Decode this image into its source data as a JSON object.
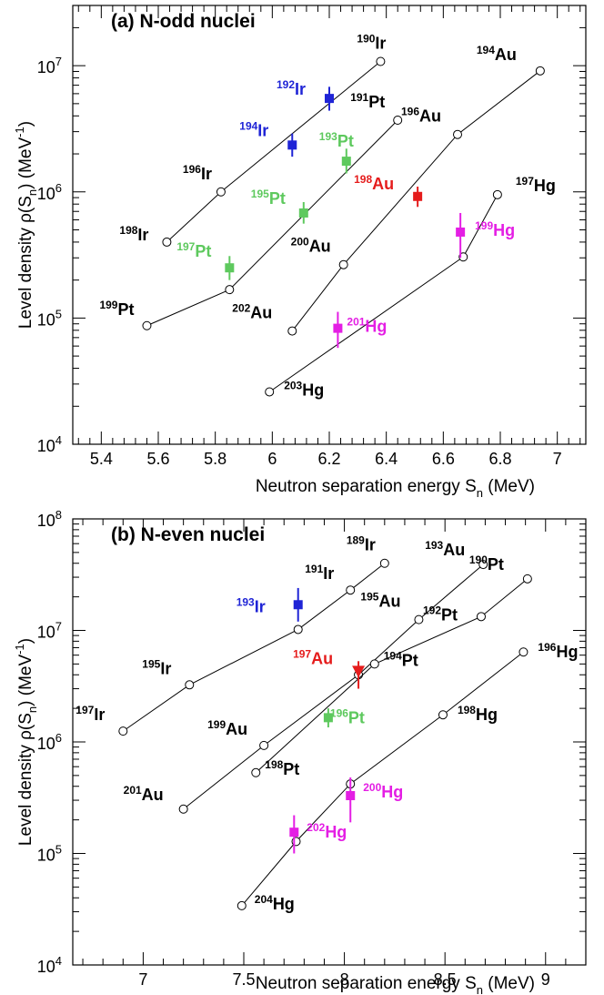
{
  "colors": {
    "Ir": "#1f24d6",
    "Pt": "#5ec95e",
    "Au": "#e51c1c",
    "Hg": "#e41ee4",
    "calc": "#000000"
  },
  "chart_data": [
    {
      "type": "scatter",
      "title": "(a)   N-odd nuclei",
      "xlabel": "Neutron separation energy S",
      "xlabel_sub": "n",
      "xlabel_unit": " (MeV)",
      "ylabel": "Level density ρ(S",
      "ylabel_sub": "n",
      "ylabel_unit": ") (MeV",
      "ylabel_sup": "-1",
      "ylabel_close": ")",
      "xlim": [
        5.3,
        7.1
      ],
      "ylim": [
        10000,
        30000000
      ],
      "yscale": "log",
      "xticks": [
        5.4,
        5.6,
        5.8,
        6.0,
        6.2,
        6.4,
        6.6,
        6.8,
        7.0
      ],
      "xtick_labels": [
        "5.4",
        "5.6",
        "5.8",
        "6",
        "6.2",
        "6.4",
        "6.6",
        "6.8",
        "7"
      ],
      "yticks": [
        10000,
        100000,
        1000000,
        10000000
      ],
      "ytick_labels": [
        {
          "base": "10",
          "exp": "4"
        },
        {
          "base": "10",
          "exp": "5"
        },
        {
          "base": "10",
          "exp": "6"
        },
        {
          "base": "10",
          "exp": "7"
        }
      ],
      "series": [
        {
          "element": "Ir",
          "points": [
            {
              "x": 5.63,
              "y": 400000,
              "label": {
                "mass": "198",
                "el": "Ir"
              }
            },
            {
              "x": 5.82,
              "y": 1000000,
              "label": {
                "mass": "196",
                "el": "Ir"
              }
            },
            {
              "x": 6.38,
              "y": 10800000,
              "label": {
                "mass": "190",
                "el": "Ir"
              }
            }
          ]
        },
        {
          "element": "Pt",
          "points": [
            {
              "x": 5.56,
              "y": 87000,
              "label": {
                "mass": "199",
                "el": "Pt"
              }
            },
            {
              "x": 5.85,
              "y": 168000,
              "label": null
            },
            {
              "x": 6.44,
              "y": 3700000,
              "label": {
                "mass": "191",
                "el": "Pt"
              }
            }
          ]
        },
        {
          "element": "Au",
          "points": [
            {
              "x": 6.07,
              "y": 79000,
              "label": {
                "mass": "202",
                "el": "Au"
              }
            },
            {
              "x": 6.25,
              "y": 265000,
              "label": {
                "mass": "200",
                "el": "Au"
              }
            },
            {
              "x": 6.65,
              "y": 2850000,
              "label": {
                "mass": "196",
                "el": "Au"
              }
            },
            {
              "x": 6.94,
              "y": 9100000,
              "label": {
                "mass": "194",
                "el": "Au"
              }
            }
          ]
        },
        {
          "element": "Hg",
          "points": [
            {
              "x": 5.99,
              "y": 26000,
              "label": {
                "mass": "203",
                "el": "Hg"
              }
            },
            {
              "x": 6.67,
              "y": 305000,
              "label": null
            },
            {
              "x": 6.79,
              "y": 950000,
              "label": {
                "mass": "197",
                "el": "Hg"
              }
            }
          ]
        }
      ],
      "experimental": [
        {
          "element": "Ir",
          "mass": "192",
          "x": 6.2,
          "y": 5500000,
          "ylo": 4400000,
          "yhi": 6800000
        },
        {
          "element": "Ir",
          "mass": "194",
          "x": 6.07,
          "y": 2350000,
          "ylo": 1900000,
          "yhi": 2900000
        },
        {
          "element": "Pt",
          "mass": "193",
          "x": 6.26,
          "y": 1750000,
          "ylo": 1400000,
          "yhi": 2200000
        },
        {
          "element": "Pt",
          "mass": "195",
          "x": 6.11,
          "y": 680000,
          "ylo": 560000,
          "yhi": 830000
        },
        {
          "element": "Pt",
          "mass": "197",
          "x": 5.85,
          "y": 250000,
          "ylo": 200000,
          "yhi": 310000
        },
        {
          "element": "Au",
          "mass": "198",
          "x": 6.51,
          "y": 920000,
          "ylo": 760000,
          "yhi": 1100000
        },
        {
          "element": "Hg",
          "mass": "199",
          "x": 6.66,
          "y": 480000,
          "ylo": 300000,
          "yhi": 680000
        },
        {
          "element": "Hg",
          "mass": "201",
          "x": 6.23,
          "y": 83000,
          "ylo": 58000,
          "yhi": 112000
        }
      ]
    },
    {
      "type": "scatter",
      "title": "(b)   N-even nuclei",
      "xlabel": "Neutron separation energy S",
      "xlabel_sub": "n",
      "xlabel_unit": " (MeV)",
      "ylabel": "Level density ρ(S",
      "ylabel_sub": "n",
      "ylabel_unit": ") (MeV",
      "ylabel_sup": "-1",
      "ylabel_close": ")",
      "xlim": [
        6.65,
        9.2
      ],
      "ylim": [
        10000,
        100000000
      ],
      "yscale": "log",
      "xticks": [
        7.0,
        7.5,
        8.0,
        8.5,
        9.0
      ],
      "xtick_labels": [
        "7",
        "7.5",
        "8",
        "8.5",
        "9"
      ],
      "yticks": [
        10000,
        100000,
        1000000,
        10000000,
        100000000
      ],
      "ytick_labels": [
        {
          "base": "10",
          "exp": "4"
        },
        {
          "base": "10",
          "exp": "5"
        },
        {
          "base": "10",
          "exp": "6"
        },
        {
          "base": "10",
          "exp": "7"
        },
        {
          "base": "10",
          "exp": "8"
        }
      ],
      "series": [
        {
          "element": "Ir",
          "points": [
            {
              "x": 6.9,
              "y": 1250000,
              "label": {
                "mass": "197",
                "el": "Ir"
              }
            },
            {
              "x": 7.23,
              "y": 3250000,
              "label": {
                "mass": "195",
                "el": "Ir"
              }
            },
            {
              "x": 7.77,
              "y": 10200000,
              "label": null
            },
            {
              "x": 8.03,
              "y": 23000000,
              "label": {
                "mass": "191",
                "el": "Ir"
              }
            },
            {
              "x": 8.2,
              "y": 40000000,
              "label": {
                "mass": "189",
                "el": "Ir"
              }
            }
          ]
        },
        {
          "element": "Au",
          "points": [
            {
              "x": 7.2,
              "y": 250000,
              "label": {
                "mass": "201",
                "el": "Au"
              }
            },
            {
              "x": 7.6,
              "y": 930000,
              "label": {
                "mass": "199",
                "el": "Au"
              }
            },
            {
              "x": 8.07,
              "y": 4000000,
              "label": null
            },
            {
              "x": 8.37,
              "y": 12500000,
              "label": {
                "mass": "195",
                "el": "Au"
              }
            },
            {
              "x": 8.69,
              "y": 39000000,
              "label": {
                "mass": "193",
                "el": "Au"
              }
            }
          ]
        },
        {
          "element": "Pt",
          "points": [
            {
              "x": 7.56,
              "y": 530000,
              "label": {
                "mass": "198",
                "el": "Pt"
              }
            },
            {
              "x": 8.15,
              "y": 5000000,
              "label": {
                "mass": "194",
                "el": "Pt"
              }
            },
            {
              "x": 8.68,
              "y": 13300000,
              "label": {
                "mass": "192",
                "el": "Pt"
              }
            },
            {
              "x": 8.91,
              "y": 29000000,
              "label": {
                "mass": "190",
                "el": "Pt"
              }
            }
          ]
        },
        {
          "element": "Hg",
          "points": [
            {
              "x": 7.49,
              "y": 34000,
              "label": {
                "mass": "204",
                "el": "Hg"
              }
            },
            {
              "x": 7.76,
              "y": 128000,
              "label": null
            },
            {
              "x": 8.03,
              "y": 420000,
              "label": null
            },
            {
              "x": 8.49,
              "y": 1750000,
              "label": {
                "mass": "198",
                "el": "Hg"
              }
            },
            {
              "x": 8.89,
              "y": 6400000,
              "label": {
                "mass": "196",
                "el": "Hg"
              }
            }
          ]
        }
      ],
      "experimental": [
        {
          "element": "Ir",
          "mass": "193",
          "x": 7.77,
          "y": 17000000,
          "ylo": 12000000,
          "yhi": 24000000
        },
        {
          "element": "Au",
          "mass": "197",
          "x": 8.07,
          "y": 4300000,
          "ylo": 3000000,
          "yhi": 5300000,
          "marker": "triangle"
        },
        {
          "element": "Pt",
          "mass": "196",
          "x": 7.92,
          "y": 1650000,
          "ylo": 1350000,
          "yhi": 2000000
        },
        {
          "element": "Hg",
          "mass": "200",
          "x": 8.03,
          "y": 330000,
          "ylo": 190000,
          "yhi": 480000
        },
        {
          "element": "Hg",
          "mass": "202",
          "x": 7.75,
          "y": 155000,
          "ylo": 100000,
          "yhi": 220000
        }
      ]
    }
  ]
}
